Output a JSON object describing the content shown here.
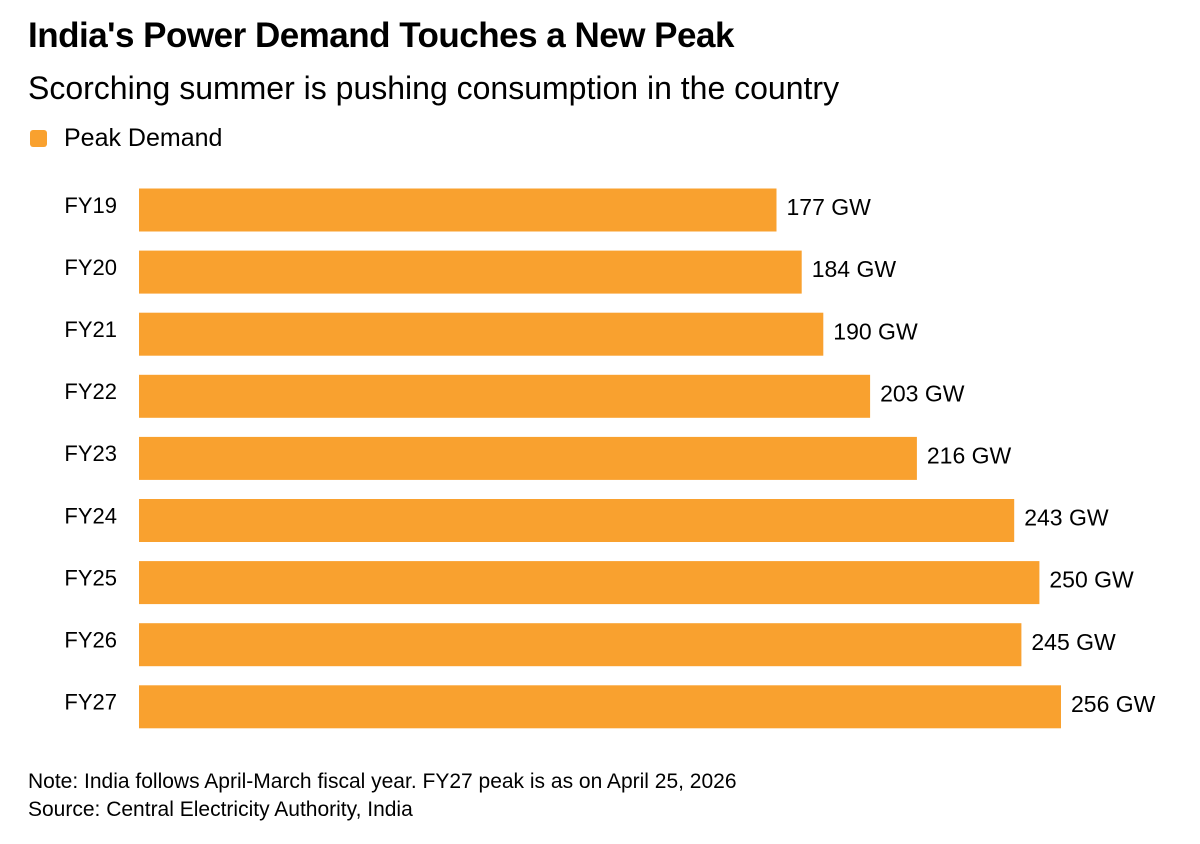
{
  "header": {
    "title": "India's Power Demand Touches a New Peak",
    "subtitle": "Scorching summer is pushing consumption in the country"
  },
  "legend": {
    "label": "Peak Demand",
    "color": "#F9A12F"
  },
  "footer": {
    "note": "Note: India follows April-March fiscal year. FY27 peak is as on April 25, 2026",
    "source": "Source: Central Electricity Authority, India"
  },
  "chart_data": {
    "type": "bar",
    "orientation": "horizontal",
    "categories": [
      "FY19",
      "FY20",
      "FY21",
      "FY22",
      "FY23",
      "FY24",
      "FY25",
      "FY26",
      "FY27"
    ],
    "series": [
      {
        "name": "Peak Demand",
        "color": "#F9A12F",
        "values": [
          177,
          184,
          190,
          203,
          216,
          243,
          250,
          245,
          256
        ],
        "labels": [
          "177 GW",
          "184 GW",
          "190 GW",
          "203 GW",
          "216 GW",
          "243 GW",
          "250 GW",
          "245 GW",
          "256 GW"
        ]
      }
    ],
    "unit": "GW",
    "xlim": [
      0,
      256
    ],
    "grid": false,
    "legend_position": "top-left"
  }
}
